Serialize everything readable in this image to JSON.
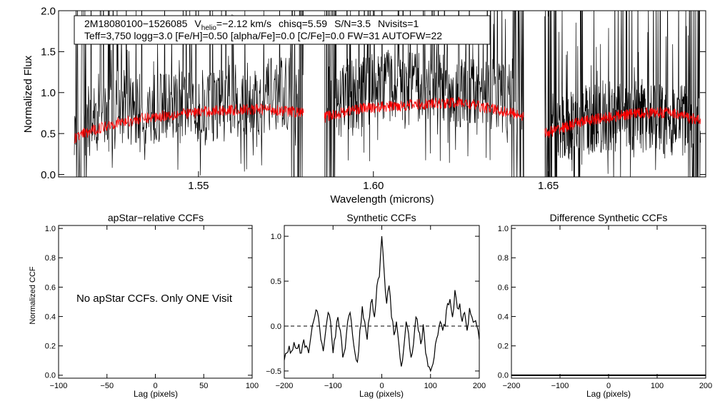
{
  "chart_data": [
    {
      "type": "line",
      "panel": "spectrum",
      "xlabel": "Wavelength (microns)",
      "ylabel": "Normalized Flux",
      "xlim": [
        1.51,
        1.695
      ],
      "ylim": [
        -0.03,
        2.0
      ],
      "xticks": [
        1.55,
        1.6,
        1.65
      ],
      "xtick_labels": [
        "1.55",
        "1.60",
        "1.65"
      ],
      "yticks": [
        0.0,
        0.5,
        1.0,
        1.5,
        2.0
      ],
      "ytick_labels": [
        "0.0",
        "0.5",
        "1.0",
        "1.5",
        "2.0"
      ],
      "annotation": {
        "star": "2M18080100−1526085",
        "vhelio_prefix": "V",
        "vhelio_sub": "helio",
        "vhelio_value": "=−2.12 km/s",
        "chisq": "chisq=5.59",
        "snr": "S/N=3.5",
        "nvisits": "Nvisits=1",
        "line2": "Teff=3,750 logg=3.0 [Fe/H]=0.50 [alpha/Fe]=0.0 [C/Fe]=0.0 FW=31 AUTOFW=22"
      },
      "chips": [
        [
          1.5145,
          1.58
        ],
        [
          1.586,
          1.643
        ],
        [
          1.649,
          1.6935
        ]
      ],
      "series": [
        {
          "name": "observed spectrum",
          "color": "#000000",
          "knots": [
            [
              1.5145,
              0.6
            ],
            [
              1.53,
              0.78
            ],
            [
              1.545,
              0.82
            ],
            [
              1.56,
              0.9
            ],
            [
              1.575,
              1.0
            ],
            [
              1.58,
              0.95
            ],
            [
              1.586,
              0.95
            ],
            [
              1.6,
              1.05
            ],
            [
              1.615,
              1.05
            ],
            [
              1.63,
              1.0
            ],
            [
              1.643,
              0.9
            ],
            [
              1.649,
              0.55
            ],
            [
              1.665,
              0.7
            ],
            [
              1.68,
              0.72
            ],
            [
              1.6935,
              0.6
            ]
          ],
          "scatter": 0.45
        },
        {
          "name": "synthetic model",
          "color": "#ff0000",
          "knots": [
            [
              1.5145,
              0.45
            ],
            [
              1.525,
              0.62
            ],
            [
              1.54,
              0.72
            ],
            [
              1.555,
              0.78
            ],
            [
              1.57,
              0.8
            ],
            [
              1.58,
              0.75
            ],
            [
              1.586,
              0.7
            ],
            [
              1.595,
              0.8
            ],
            [
              1.61,
              0.85
            ],
            [
              1.625,
              0.88
            ],
            [
              1.643,
              0.72
            ],
            [
              1.649,
              0.5
            ],
            [
              1.66,
              0.65
            ],
            [
              1.675,
              0.75
            ],
            [
              1.685,
              0.76
            ],
            [
              1.6935,
              0.65
            ]
          ],
          "scatter": 0.07
        }
      ]
    },
    {
      "type": "line",
      "panel": "apstar-ccf",
      "title": "apStar−relative CCFs",
      "xlabel": "Lag (pixels)",
      "ylabel": "Normalized CCF",
      "xlim": [
        -100,
        100
      ],
      "ylim": [
        -0.02,
        1.02
      ],
      "xticks": [
        -100,
        -50,
        0,
        50,
        100
      ],
      "xtick_labels": [
        "−100",
        "−50",
        "0",
        "50",
        "100"
      ],
      "yticks": [
        0.0,
        0.2,
        0.4,
        0.6,
        0.8,
        1.0
      ],
      "ytick_labels": [
        "0.0",
        "0.2",
        "0.4",
        "0.6",
        "0.8",
        "1.0"
      ],
      "message": "No apStar CCFs.  Only ONE Visit"
    },
    {
      "type": "line",
      "panel": "synthetic-ccf",
      "title": "Synthetic CCFs",
      "xlabel": "Lag (pixels)",
      "xlim": [
        -200,
        200
      ],
      "ylim": [
        -0.58,
        1.12
      ],
      "xticks": [
        -200,
        -100,
        0,
        100,
        200
      ],
      "xtick_labels": [
        "−200",
        "−100",
        "0",
        "100",
        "200"
      ],
      "yticks": [
        -0.5,
        0.0,
        0.5,
        1.0
      ],
      "ytick_labels": [
        "−0.5",
        "0.0",
        "0.5",
        "1.0"
      ],
      "zero_line": 0.0,
      "series": [
        {
          "name": "synthetic CCF",
          "color": "#000000",
          "x": [
            -200,
            -195,
            -190,
            -185,
            -180,
            -175,
            -170,
            -165,
            -160,
            -155,
            -150,
            -145,
            -140,
            -135,
            -130,
            -125,
            -120,
            -115,
            -110,
            -105,
            -100,
            -95,
            -90,
            -85,
            -80,
            -75,
            -70,
            -65,
            -60,
            -55,
            -50,
            -45,
            -40,
            -35,
            -30,
            -25,
            -20,
            -15,
            -10,
            -5,
            0,
            5,
            10,
            15,
            20,
            25,
            30,
            35,
            40,
            45,
            50,
            55,
            60,
            65,
            70,
            75,
            80,
            85,
            90,
            95,
            100,
            105,
            110,
            115,
            120,
            125,
            130,
            135,
            140,
            145,
            150,
            155,
            160,
            165,
            170,
            175,
            180,
            185,
            190,
            195,
            200
          ],
          "y": [
            -0.38,
            -0.3,
            -0.22,
            -0.28,
            -0.18,
            -0.25,
            -0.2,
            -0.3,
            -0.15,
            -0.22,
            -0.3,
            -0.1,
            0.05,
            0.18,
            0.1,
            -0.15,
            -0.28,
            -0.05,
            0.15,
            0.05,
            -0.3,
            -0.12,
            0.1,
            -0.05,
            -0.35,
            -0.25,
            0.05,
            0.15,
            -0.1,
            -0.3,
            -0.4,
            -0.05,
            0.22,
            0.05,
            -0.15,
            0.1,
            0.3,
            0.1,
            0.45,
            0.55,
            1.0,
            0.6,
            0.25,
            0.45,
            0.1,
            -0.1,
            0.05,
            -0.2,
            -0.45,
            -0.25,
            0.05,
            -0.08,
            -0.35,
            -0.2,
            0.1,
            -0.05,
            -0.2,
            0.02,
            -0.3,
            -0.45,
            -0.5,
            -0.42,
            -0.2,
            -0.1,
            0.05,
            -0.05,
            0.0,
            0.25,
            0.3,
            0.1,
            0.4,
            0.2,
            0.25,
            0.05,
            0.15,
            -0.05,
            0.2,
            0.1,
            0.05,
            0.0,
            -0.15
          ]
        }
      ]
    },
    {
      "type": "line",
      "panel": "difference-ccf",
      "title": "Difference Synthetic CCFs",
      "xlabel": "Lag (pixels)",
      "xlim": [
        -200,
        200
      ],
      "ylim": [
        -0.02,
        1.02
      ],
      "xticks": [
        -200,
        -100,
        0,
        100,
        200
      ],
      "xtick_labels": [
        "−200",
        "−100",
        "0",
        "100",
        "200"
      ],
      "yticks": [
        0.0,
        0.2,
        0.4,
        0.6,
        0.8,
        1.0
      ],
      "ytick_labels": [
        "0.0",
        "0.2",
        "0.4",
        "0.6",
        "0.8",
        "1.0"
      ],
      "series": [
        {
          "name": "difference CCF",
          "color": "#000000",
          "x": [
            -200,
            200
          ],
          "y": [
            0.0,
            0.0
          ]
        }
      ]
    }
  ]
}
